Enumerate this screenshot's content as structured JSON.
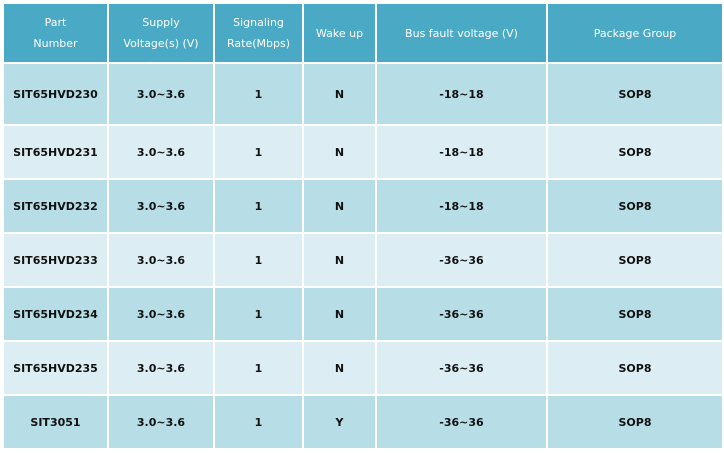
{
  "headers": [
    "Part\nNumber",
    "Supply\nVoltage(s) (V)",
    "Signaling\nRate(Mbps)",
    "Wake up",
    "Bus fault voltage (V)",
    "Package Group"
  ],
  "rows": [
    [
      "SIT65HVD230",
      "3.0~3.6",
      "1",
      "N",
      "-18~18",
      "SOP8"
    ],
    [
      "SIT65HVD231",
      "3.0~3.6",
      "1",
      "N",
      "-18~18",
      "SOP8"
    ],
    [
      "SIT65HVD232",
      "3.0~3.6",
      "1",
      "N",
      "-18~18",
      "SOP8"
    ],
    [
      "SIT65HVD233",
      "3.0~3.6",
      "1",
      "N",
      "-36~36",
      "SOP8"
    ],
    [
      "SIT65HVD234",
      "3.0~3.6",
      "1",
      "N",
      "-36~36",
      "SOP8"
    ],
    [
      "SIT65HVD235",
      "3.0~3.6",
      "1",
      "N",
      "-36~36",
      "SOP8"
    ],
    [
      "SIT3051",
      "3.0~3.6",
      "1",
      "Y",
      "-36~36",
      "SOP8"
    ]
  ],
  "colors": {
    "header": "#4aa9c4",
    "row_dark": "#b7dde7",
    "row_light": "#dceef3"
  }
}
